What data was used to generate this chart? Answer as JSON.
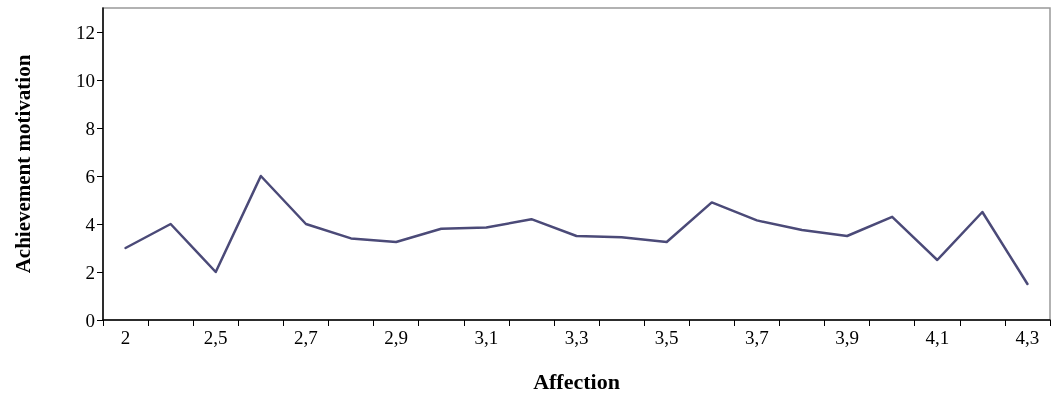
{
  "chart_data": {
    "type": "line",
    "xlabel": "Affection",
    "ylabel": "Achievement motivation",
    "categories": [
      "2",
      null,
      "2,5",
      null,
      "2,7",
      null,
      "2,9",
      null,
      "3,1",
      null,
      "3,3",
      null,
      "3,5",
      null,
      "3,7",
      null,
      "3,9",
      null,
      "4,1",
      null,
      "4,3"
    ],
    "series": [
      {
        "color": "#4b4a78",
        "values": [
          3,
          4,
          2,
          6,
          4,
          3.4,
          3.25,
          3.8,
          3.85,
          4.2,
          3.5,
          3.45,
          3.25,
          4.9,
          4.15,
          3.75,
          3.5,
          4.3,
          2.5,
          4.5,
          1.5
        ]
      }
    ],
    "ylim": [
      0,
      13
    ],
    "yticks": [
      0,
      2,
      4,
      6,
      8,
      10,
      12
    ],
    "grid": false,
    "marker": "none",
    "line_style": "solid"
  }
}
